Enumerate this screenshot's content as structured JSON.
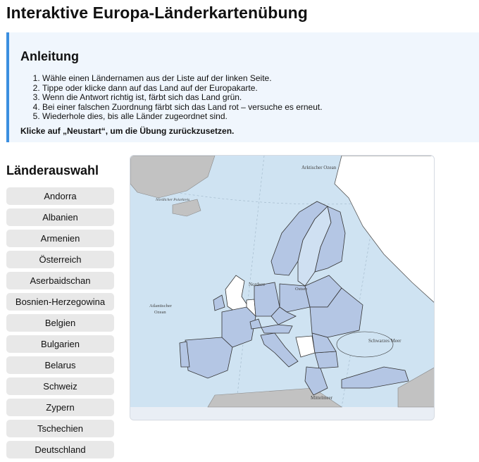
{
  "page": {
    "title": "Interaktive Europa-Länderkartenübung"
  },
  "instructions": {
    "heading": "Anleitung",
    "steps": [
      "Wähle einen Ländernamen aus der Liste auf der linken Seite.",
      "Tippe oder klicke dann auf das Land auf der Europakarte.",
      "Wenn die Antwort richtig ist, färbt sich das Land grün.",
      "Bei einer falschen Zuordnung färbt sich das Land rot – versuche es erneut.",
      "Wiederhole dies, bis alle Länder zugeordnet sind."
    ],
    "note": "Klicke auf „Neustart“, um die Übung zurückzusetzen."
  },
  "country_list": {
    "heading": "Länderauswahl",
    "items": [
      "Andorra",
      "Albanien",
      "Armenien",
      "Österreich",
      "Aserbaidschan",
      "Bosnien-Herzegowina",
      "Belgien",
      "Bulgarien",
      "Belarus",
      "Schweiz",
      "Zypern",
      "Tschechien",
      "Deutschland"
    ]
  },
  "map": {
    "labels": {
      "arctic": "Arktischer Ozean",
      "polar": "Nördlicher Polarkreis",
      "atlantic_1": "Atlantischer",
      "atlantic_2": "Ozean",
      "north_sea": "Nordsee",
      "baltic": "Ostsee",
      "black_sea": "Schwarzes Meer",
      "mediterranean": "Mittelmeer"
    }
  },
  "colors": {
    "accent": "#3b8fe0",
    "instructions_bg": "#f0f6fd",
    "button_bg": "#e8e8e8",
    "sea": "#cfe3f2",
    "country": "#b4c6e4",
    "land_other": "#c2c2c2"
  }
}
